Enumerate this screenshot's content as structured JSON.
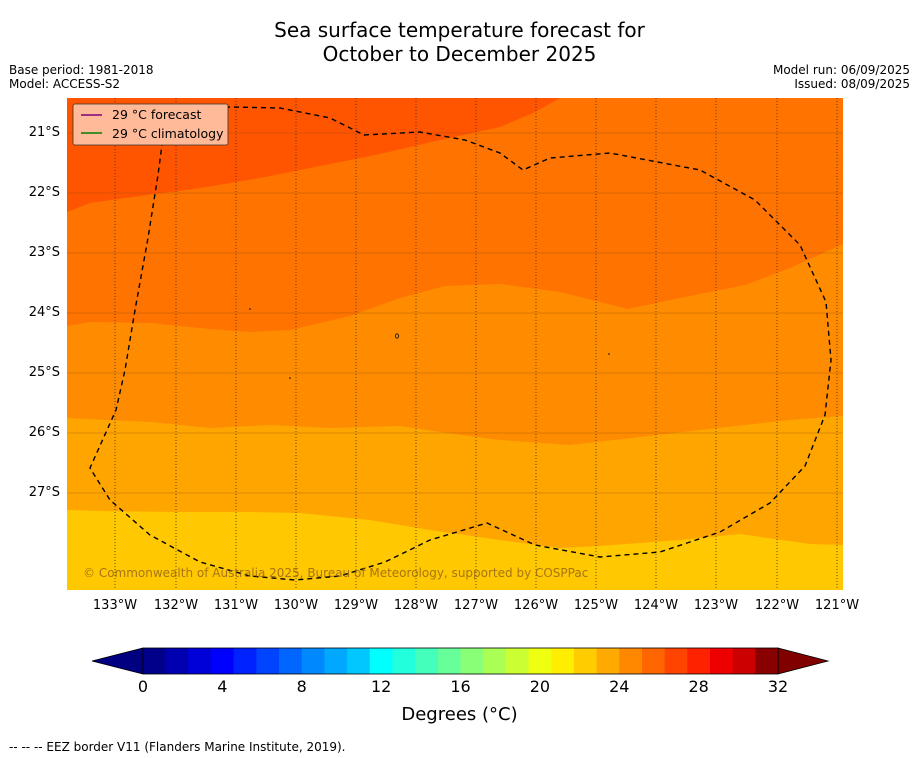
{
  "header": {
    "title_line1": "Sea surface temperature forecast for",
    "title_line2": "October to December 2025",
    "base_period": "Base period: 1981-2018",
    "model": "Model: ACCESS-S2",
    "model_run": "Model run: 06/09/2025",
    "issued": "Issued: 08/09/2025"
  },
  "map": {
    "x_ticks": [
      "133°W",
      "132°W",
      "131°W",
      "130°W",
      "129°W",
      "128°W",
      "127°W",
      "126°W",
      "125°W",
      "124°W",
      "123°W",
      "122°W",
      "121°W"
    ],
    "y_ticks": [
      "21°S",
      "22°S",
      "23°S",
      "24°S",
      "25°S",
      "26°S",
      "27°S"
    ],
    "legend": [
      {
        "label": "29 °C  forecast",
        "color": "#800080"
      },
      {
        "label": "29 °C  climatology",
        "color": "#008000"
      }
    ],
    "copyright": "© Commonwealth of Australia 2025, Bureau of Meteorology, supported by COSPPac",
    "colors": {
      "band_30": "#ff5500",
      "band_29": "#ff7300",
      "band_28": "#ff8c00",
      "band_27": "#ffa500",
      "band_26": "#ffc800",
      "legend_bg": "#ffbb99"
    }
  },
  "colorbar": {
    "ticks": [
      "0",
      "4",
      "8",
      "12",
      "16",
      "20",
      "24",
      "28",
      "32"
    ],
    "units": "Degrees (°C)",
    "colors": [
      "#00008b",
      "#0000b0",
      "#0000d8",
      "#0000ff",
      "#0022ff",
      "#0044ff",
      "#0066ff",
      "#0088ff",
      "#00a8ff",
      "#00c8ff",
      "#00ffff",
      "#22ffdd",
      "#44ffbb",
      "#66ff99",
      "#88ff77",
      "#aaff55",
      "#ccff33",
      "#eeff11",
      "#ffee00",
      "#ffcc00",
      "#ffaa00",
      "#ff8800",
      "#ff6600",
      "#ff4400",
      "#ff2200",
      "#ee0000",
      "#cc0000",
      "#880000"
    ],
    "low_color": "#000080",
    "high_color": "#800000"
  },
  "footer": {
    "eez_note": "--  --  -- EEZ border V11 (Flanders Marine Institute, 2019)."
  }
}
